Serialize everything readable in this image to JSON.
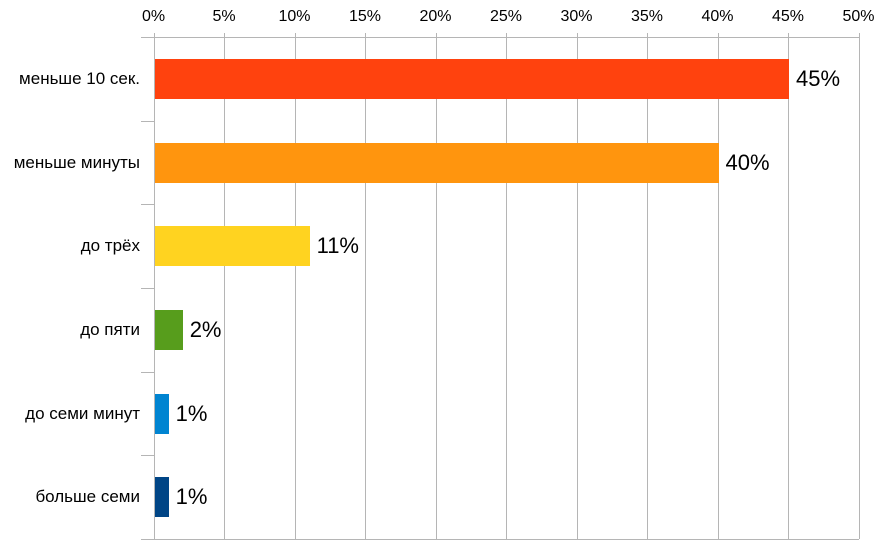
{
  "chart_data": {
    "type": "bar",
    "orientation": "horizontal",
    "title": "",
    "xlabel": "",
    "ylabel": "",
    "categories": [
      "меньше 10 сек.",
      "меньше минуты",
      "до трёх",
      "до пяти",
      "до семи минут",
      "больше семи"
    ],
    "values": [
      45,
      40,
      11,
      2,
      1,
      1
    ],
    "value_labels": [
      "45%",
      "40%",
      "11%",
      "2%",
      "1%",
      "1%"
    ],
    "bar_colors": [
      "#ff420e",
      "#ff950e",
      "#ffd320",
      "#579d1c",
      "#0084d1",
      "#004586"
    ],
    "x_ticks": [
      "0%",
      "5%",
      "10%",
      "15%",
      "20%",
      "25%",
      "30%",
      "35%",
      "40%",
      "45%",
      "50%"
    ],
    "x_tick_values": [
      0,
      5,
      10,
      15,
      20,
      25,
      30,
      35,
      40,
      45,
      50
    ],
    "xlim": [
      0,
      50
    ],
    "axis_position": "top",
    "grid": true,
    "legend": "none",
    "gridline_color": "#b5b5b5",
    "text_color": "#000000",
    "background_color": "#ffffff"
  }
}
